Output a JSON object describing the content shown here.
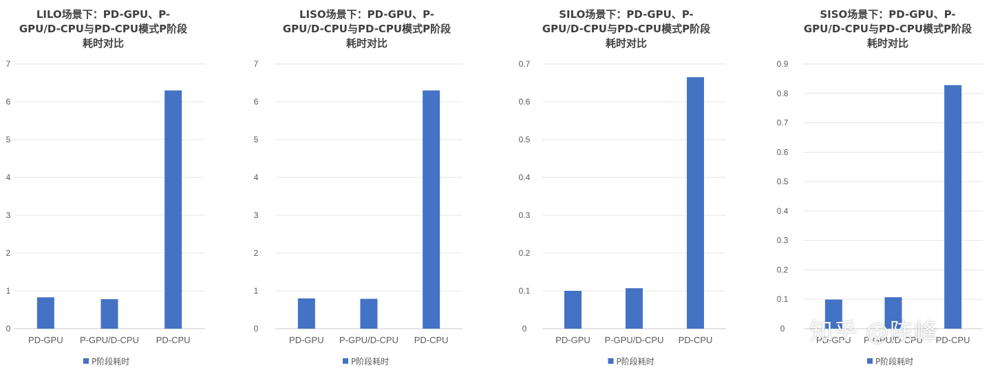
{
  "watermark": "知乎 @陈峰",
  "chart_data": [
    {
      "type": "bar",
      "title": "LILO场景下：PD-GPU、P-GPU/D-CPU与PD-CPU模式P阶段耗时对比",
      "title_lines": [
        "LILO场景下：PD-GPU、P-",
        "GPU/D-CPU与PD-CPU模式P阶段",
        "耗时对比"
      ],
      "categories": [
        "PD-GPU",
        "P-GPU/D-CPU",
        "PD-CPU"
      ],
      "series": [
        {
          "name": "P阶段耗时",
          "values": [
            0.83,
            0.78,
            6.3
          ]
        }
      ],
      "ylim": [
        0,
        7
      ],
      "yticks": [
        0,
        1,
        2,
        3,
        4,
        5,
        6,
        7
      ],
      "ytick_labels": [
        "0",
        "1",
        "2",
        "3",
        "4",
        "5",
        "6",
        "7"
      ],
      "grid": true,
      "legend": "bottom",
      "color": "#4472C4"
    },
    {
      "type": "bar",
      "title": "LISO场景下：PD-GPU、P-GPU/D-CPU与PD-CPU模式P阶段耗时对比",
      "title_lines": [
        "LISO场景下：PD-GPU、P-",
        "GPU/D-CPU与PD-CPU模式P阶段",
        "耗时对比"
      ],
      "categories": [
        "PD-GPU",
        "P-GPU/D-CPU",
        "PD-CPU"
      ],
      "series": [
        {
          "name": "P阶段耗时",
          "values": [
            0.8,
            0.79,
            6.3
          ]
        }
      ],
      "ylim": [
        0,
        7
      ],
      "yticks": [
        0,
        1,
        2,
        3,
        4,
        5,
        6,
        7
      ],
      "ytick_labels": [
        "0",
        "1",
        "2",
        "3",
        "4",
        "5",
        "6",
        "7"
      ],
      "grid": true,
      "legend": "bottom",
      "color": "#4472C4"
    },
    {
      "type": "bar",
      "title": "SILO场景下：PD-GPU、P-GPU/D-CPU与PD-CPU模式P阶段耗时对比",
      "title_lines": [
        "SILO场景下：PD-GPU、P-",
        "GPU/D-CPU与PD-CPU模式P阶段",
        "耗时对比"
      ],
      "categories": [
        "PD-GPU",
        "P-GPU/D-CPU",
        "PD-CPU"
      ],
      "series": [
        {
          "name": "P阶段耗时",
          "values": [
            0.1,
            0.107,
            0.665
          ]
        }
      ],
      "ylim": [
        0,
        0.7
      ],
      "yticks": [
        0,
        0.1,
        0.2,
        0.3,
        0.4,
        0.5,
        0.6,
        0.7
      ],
      "ytick_labels": [
        "0",
        "0.1",
        "0.2",
        "0.3",
        "0.4",
        "0.5",
        "0.6",
        "0.7"
      ],
      "grid": true,
      "legend": "bottom",
      "color": "#4472C4"
    },
    {
      "type": "bar",
      "title": "SISO场景下：PD-GPU、P-GPU/D-CPU与PD-CPU模式P阶段耗时对比",
      "title_lines": [
        "SISO场景下：PD-GPU、P-",
        "GPU/D-CPU与PD-CPU模式P阶段",
        "耗时对比"
      ],
      "categories": [
        "PD-GPU",
        "P-GPU/D-CPU",
        "PD-CPU"
      ],
      "series": [
        {
          "name": "P阶段耗时",
          "values": [
            0.099,
            0.107,
            0.828
          ]
        }
      ],
      "ylim": [
        0,
        0.9
      ],
      "yticks": [
        0,
        0.1,
        0.2,
        0.3,
        0.4,
        0.5,
        0.6,
        0.7,
        0.8,
        0.9
      ],
      "ytick_labels": [
        "0",
        "0.1",
        "0.2",
        "0.3",
        "0.4",
        "0.5",
        "0.6",
        "0.7",
        "0.8",
        "0.9"
      ],
      "grid": true,
      "legend": "bottom",
      "color": "#4472C4"
    }
  ]
}
